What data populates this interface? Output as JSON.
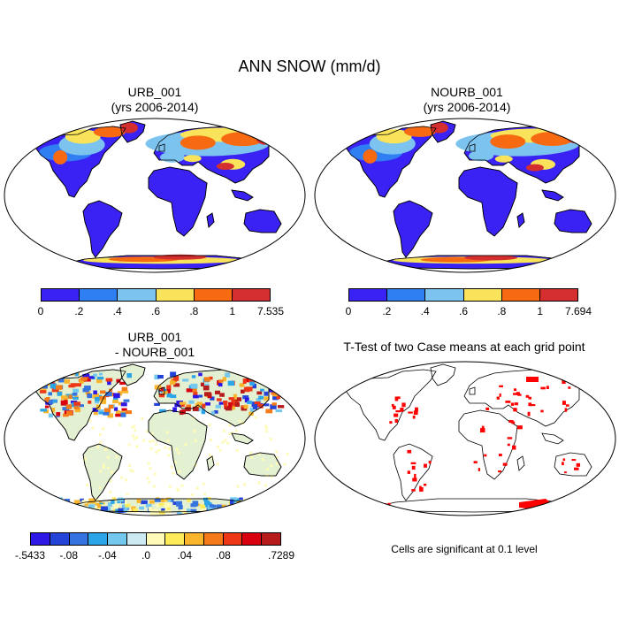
{
  "title": "ANN SNOW (mm/d)",
  "panels": {
    "urb": {
      "line1": "URB_001",
      "line2": "(yrs 2006-2014)"
    },
    "nourb": {
      "line1": "NOURB_001",
      "line2": "(yrs 2006-2014)"
    },
    "diff": {
      "line1": "URB_001",
      "line2": "- NOURB_001"
    },
    "ttest": {
      "title": "T-Test of two Case means at each grid point",
      "note": "Cells are significant at 0.1 level"
    }
  },
  "colorbars": {
    "urb": {
      "colors": [
        "#3a22f5",
        "#2f7ef2",
        "#7cc3ef",
        "#f8e35a",
        "#f86a11",
        "#d42e2e"
      ],
      "labels": [
        "0",
        ".2",
        ".4",
        ".6",
        ".8",
        "1",
        "7.535"
      ]
    },
    "nourb": {
      "colors": [
        "#3a22f5",
        "#2f7ef2",
        "#7cc3ef",
        "#f8e35a",
        "#f86a11",
        "#d42e2e"
      ],
      "labels": [
        "0",
        ".2",
        ".4",
        ".6",
        ".8",
        "1",
        "7.694"
      ]
    },
    "diff": {
      "colors": [
        "#2f18e6",
        "#2444d8",
        "#3473e0",
        "#2ca4e8",
        "#74c8ee",
        "#cde9f2",
        "#fefab8",
        "#fdeb5a",
        "#f9b62c",
        "#f57a1a",
        "#ee3717",
        "#d8000f",
        "#b71c1c"
      ],
      "labels": [
        "-.5433",
        "",
        "-.08",
        "",
        "-.04",
        "",
        ".0",
        "",
        ".04",
        "",
        ".08",
        "",
        "",
        ".7289"
      ]
    }
  }
}
